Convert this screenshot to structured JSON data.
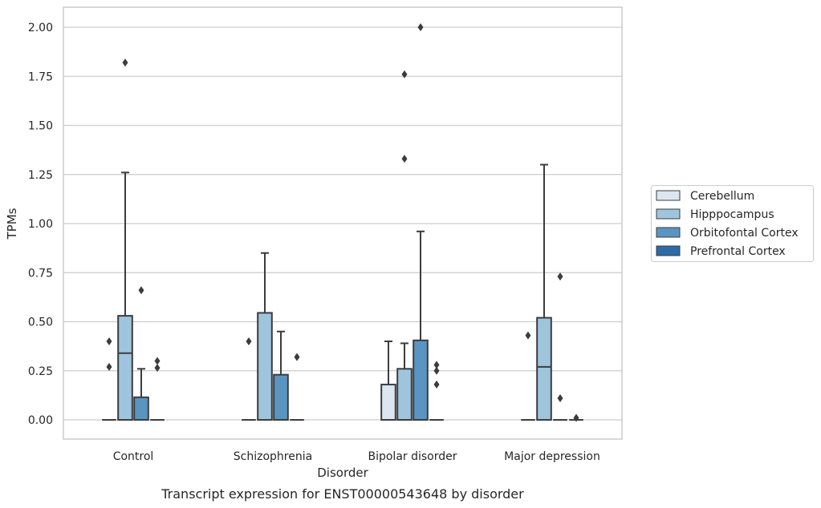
{
  "chart_data": {
    "type": "box",
    "title": "",
    "caption": "Transcript expression for ENST00000543648 by disorder",
    "xlabel": "Disorder",
    "ylabel": "TPMs",
    "ylim": [
      -0.1,
      2.1
    ],
    "yticks": [
      0.0,
      0.25,
      0.5,
      0.75,
      1.0,
      1.25,
      1.5,
      1.75,
      2.0
    ],
    "ytick_labels": [
      "0.00",
      "0.25",
      "0.50",
      "0.75",
      "1.00",
      "1.25",
      "1.50",
      "1.75",
      "2.00"
    ],
    "grid": "horizontal",
    "legend_position": "outside-right",
    "categories": [
      "Control",
      "Schizophrenia",
      "Bipolar disorder",
      "Major depression"
    ],
    "series": [
      {
        "name": "Cerebellum",
        "color": "#dce6f0",
        "boxes": [
          {
            "q1": 0,
            "median": 0,
            "q3": 0,
            "whisker_low": 0,
            "whisker_high": 0,
            "outliers": [
              0.27,
              0.4
            ]
          },
          {
            "q1": 0,
            "median": 0,
            "q3": 0,
            "whisker_low": 0,
            "whisker_high": 0,
            "outliers": [
              0.4
            ]
          },
          {
            "q1": 0,
            "median": 0,
            "q3": 0.18,
            "whisker_low": 0,
            "whisker_high": 0.4,
            "outliers": []
          },
          {
            "q1": 0,
            "median": 0,
            "q3": 0,
            "whisker_low": 0,
            "whisker_high": 0,
            "outliers": [
              0.43
            ]
          }
        ]
      },
      {
        "name": "Hipppocampus",
        "color": "#9fc5de",
        "boxes": [
          {
            "q1": 0,
            "median": 0.34,
            "q3": 0.53,
            "whisker_low": 0,
            "whisker_high": 1.26,
            "outliers": [
              1.82
            ]
          },
          {
            "q1": 0,
            "median": 0,
            "q3": 0.545,
            "whisker_low": 0,
            "whisker_high": 0.85,
            "outliers": []
          },
          {
            "q1": 0,
            "median": 0,
            "q3": 0.26,
            "whisker_low": 0,
            "whisker_high": 0.39,
            "outliers": [
              1.33,
              1.76
            ]
          },
          {
            "q1": 0,
            "median": 0.27,
            "q3": 0.52,
            "whisker_low": 0,
            "whisker_high": 1.3,
            "outliers": []
          }
        ]
      },
      {
        "name": "Orbitofontal Cortex",
        "color": "#5a95c2",
        "boxes": [
          {
            "q1": 0,
            "median": 0,
            "q3": 0.115,
            "whisker_low": 0,
            "whisker_high": 0.26,
            "outliers": [
              0.66
            ]
          },
          {
            "q1": 0,
            "median": 0,
            "q3": 0.23,
            "whisker_low": 0,
            "whisker_high": 0.45,
            "outliers": []
          },
          {
            "q1": 0,
            "median": 0,
            "q3": 0.405,
            "whisker_low": 0,
            "whisker_high": 0.96,
            "outliers": [
              2.0
            ]
          },
          {
            "q1": 0,
            "median": 0,
            "q3": 0,
            "whisker_low": 0,
            "whisker_high": 0,
            "outliers": [
              0.11,
              0.73
            ]
          }
        ]
      },
      {
        "name": "Prefrontal Cortex",
        "color": "#2c6ba8",
        "boxes": [
          {
            "q1": 0,
            "median": 0,
            "q3": 0,
            "whisker_low": 0,
            "whisker_high": 0,
            "outliers": [
              0.265,
              0.3
            ]
          },
          {
            "q1": 0,
            "median": 0,
            "q3": 0,
            "whisker_low": 0,
            "whisker_high": 0,
            "outliers": [
              0.32
            ]
          },
          {
            "q1": 0,
            "median": 0,
            "q3": 0,
            "whisker_low": 0,
            "whisker_high": 0,
            "outliers": [
              0.18,
              0.25,
              0.28
            ]
          },
          {
            "q1": 0,
            "median": 0,
            "q3": 0,
            "whisker_low": 0,
            "whisker_high": 0,
            "outliers": [
              0.01
            ]
          }
        ]
      }
    ]
  }
}
